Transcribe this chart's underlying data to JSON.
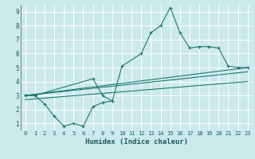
{
  "xlabel": "Humidex (Indice chaleur)",
  "xlim": [
    -0.5,
    23.5
  ],
  "ylim": [
    0.5,
    9.5
  ],
  "xticks": [
    0,
    1,
    2,
    3,
    4,
    5,
    6,
    7,
    8,
    9,
    10,
    11,
    12,
    13,
    14,
    15,
    16,
    17,
    18,
    19,
    20,
    21,
    22,
    23
  ],
  "yticks": [
    1,
    2,
    3,
    4,
    5,
    6,
    7,
    8,
    9
  ],
  "bg_color": "#cce9ec",
  "grid_color": "#ffffff",
  "line_color": "#1a7a6e",
  "line1_x": [
    0,
    1,
    2,
    3,
    4,
    5,
    6,
    7,
    8,
    9
  ],
  "line1_y": [
    3.0,
    3.0,
    2.4,
    1.5,
    0.8,
    1.0,
    0.8,
    2.2,
    2.5,
    2.6
  ],
  "line2_x": [
    0,
    1,
    7,
    8,
    9,
    10,
    12,
    13,
    14,
    15,
    16,
    17,
    18,
    19,
    20,
    21,
    22,
    23
  ],
  "line2_y": [
    3.0,
    3.0,
    4.2,
    3.0,
    2.6,
    5.1,
    6.0,
    7.5,
    8.0,
    9.3,
    7.5,
    6.4,
    6.5,
    6.5,
    6.4,
    5.1,
    5.0,
    5.0
  ],
  "line3_x": [
    0,
    23
  ],
  "line3_y": [
    3.0,
    5.0
  ],
  "line4_x": [
    0,
    23
  ],
  "line4_y": [
    3.0,
    4.7
  ],
  "line5_x": [
    0,
    23
  ],
  "line5_y": [
    2.7,
    4.0
  ]
}
